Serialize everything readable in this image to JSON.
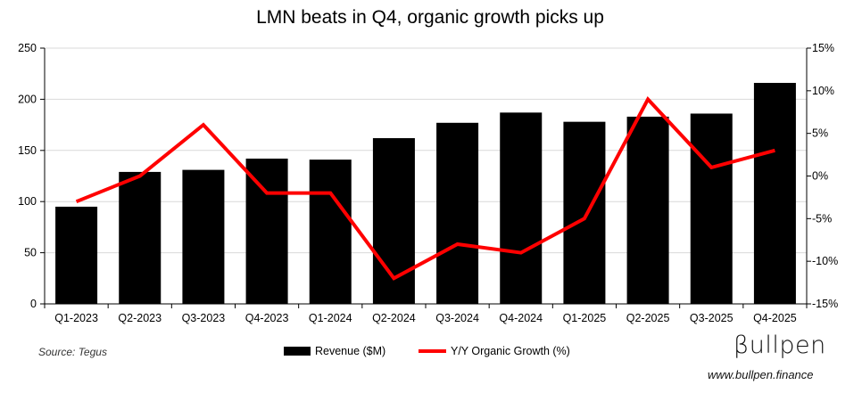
{
  "chart_data": {
    "type": "bar",
    "title": "LMN beats in Q4, organic growth picks up",
    "categories": [
      "Q1-2023",
      "Q2-2023",
      "Q3-2023",
      "Q4-2023",
      "Q1-2024",
      "Q2-2024",
      "Q3-2024",
      "Q4-2024",
      "Q1-2025",
      "Q2-2025",
      "Q3-2025",
      "Q4-2025"
    ],
    "series": [
      {
        "name": "Revenue ($M)",
        "type": "bar",
        "axis": "left",
        "color": "#000000",
        "values": [
          95,
          129,
          131,
          142,
          141,
          162,
          177,
          187,
          178,
          183,
          186,
          216
        ]
      },
      {
        "name": "Y/Y Organic Growth (%)",
        "type": "line",
        "axis": "right",
        "color": "#ff0000",
        "values": [
          -3,
          0,
          6,
          -2,
          -2,
          -12,
          -8,
          -9,
          -5,
          9,
          1,
          3
        ]
      }
    ],
    "y_left": {
      "min": 0,
      "max": 250,
      "ticks": [
        "0",
        "50",
        "100",
        "150",
        "200",
        "250"
      ]
    },
    "y_right": {
      "min": -15,
      "max": 15,
      "ticks": [
        "-15%",
        "-10%",
        "-5%",
        "0%",
        "5%",
        "10%",
        "15%"
      ]
    },
    "grid": true,
    "legend": "bottom-center"
  },
  "footer": {
    "source": "Source: Tegus",
    "brand": "βullpen",
    "website": "www.bullpen.finance"
  }
}
